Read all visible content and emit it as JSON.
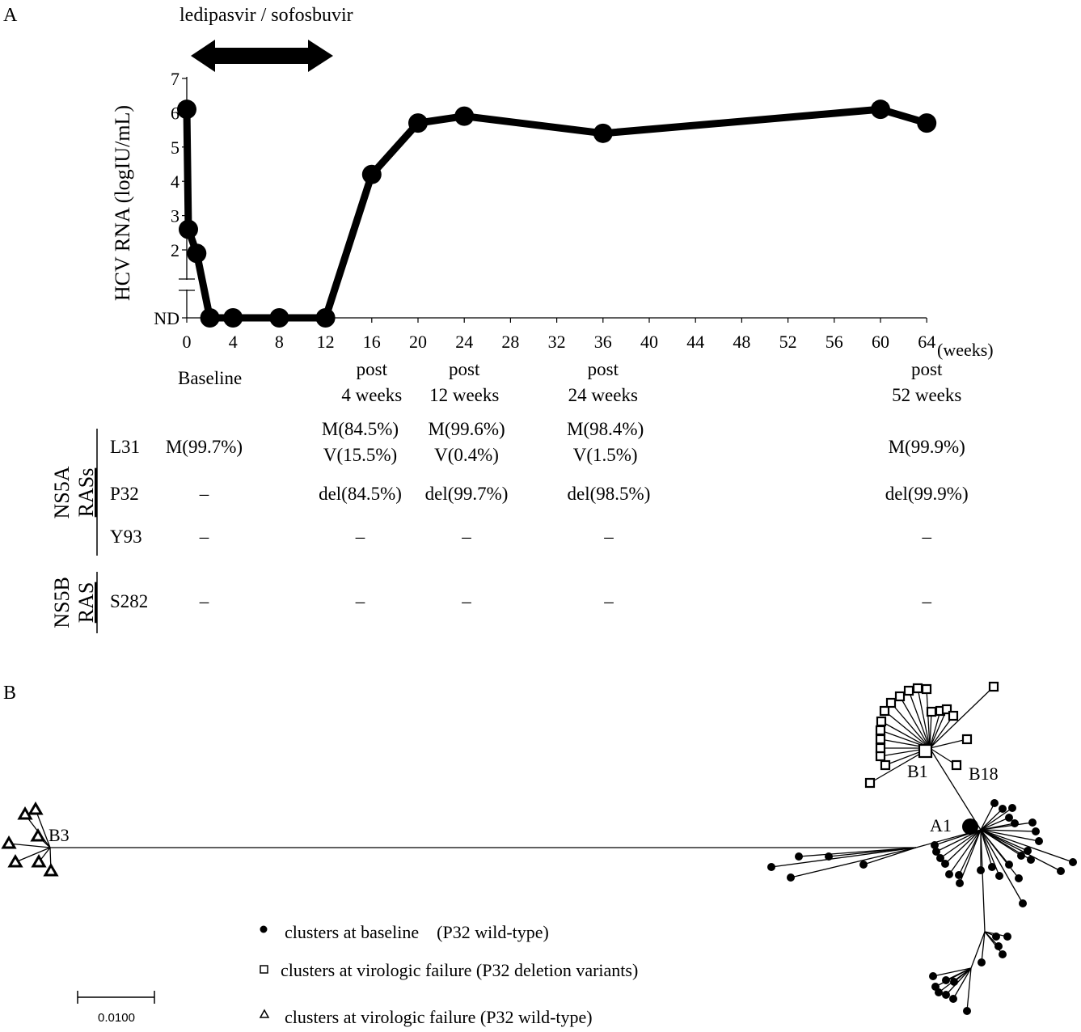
{
  "panel_a": {
    "label": "A",
    "treatment_label": "ledipasvir / sofosbuvir",
    "x_unit": "(weeks)",
    "time_labels": [
      {
        "week": 2,
        "lines": [
          "Baseline"
        ]
      },
      {
        "week": 16,
        "lines": [
          "post",
          "4 weeks"
        ]
      },
      {
        "week": 24,
        "lines": [
          "post",
          "12 weeks"
        ]
      },
      {
        "week": 36,
        "lines": [
          "post",
          "24 weeks"
        ]
      },
      {
        "week": 64,
        "lines": [
          "post",
          "52 weeks"
        ]
      }
    ]
  },
  "chart_data": {
    "type": "line",
    "title": "",
    "xlabel": "",
    "ylabel": "HCV RNA (logIU/mL)",
    "x_ticks": [
      "0",
      "4",
      "8",
      "12",
      "16",
      "20",
      "24",
      "28",
      "32",
      "36",
      "40",
      "44",
      "48",
      "52",
      "56",
      "60",
      "64"
    ],
    "y_ticks": [
      "ND",
      "2",
      "3",
      "4",
      "5",
      "6",
      "7"
    ],
    "xlim": [
      0,
      64
    ],
    "ylim": [
      0,
      7
    ],
    "y_axis_break": true,
    "grid": false,
    "treatment_period_weeks": [
      0,
      12
    ],
    "series": [
      {
        "points": [
          {
            "x": 0,
            "y": 6.1
          },
          {
            "x": 0.14,
            "y": 2.6
          },
          {
            "x": 0.86,
            "y": 1.9
          },
          {
            "x": 2,
            "y": "ND"
          },
          {
            "x": 4,
            "y": "ND"
          },
          {
            "x": 8,
            "y": "ND"
          },
          {
            "x": 12,
            "y": "ND"
          },
          {
            "x": 16,
            "y": 4.2
          },
          {
            "x": 20,
            "y": 5.7
          },
          {
            "x": 24,
            "y": 5.9
          },
          {
            "x": 36,
            "y": 5.4
          },
          {
            "x": 60,
            "y": 6.1
          },
          {
            "x": 64,
            "y": 5.7
          }
        ]
      }
    ]
  },
  "ras_table": {
    "groups": [
      {
        "label_lines": [
          "NS5A",
          "RASs"
        ],
        "rows": [
          {
            "position": "L31",
            "cells": [
              {
                "week": 1.5,
                "lines": [
                  "M(99.7%)"
                ]
              },
              {
                "week": 15,
                "lines": [
                  "M(84.5%)",
                  "V(15.5%)"
                ]
              },
              {
                "week": 24.2,
                "lines": [
                  "M(99.6%)",
                  "V(0.4%)"
                ]
              },
              {
                "week": 36.2,
                "lines": [
                  "M(98.4%)",
                  "V(1.5%)"
                ]
              },
              {
                "week": 64,
                "lines": [
                  "M(99.9%)"
                ]
              }
            ]
          },
          {
            "position": "P32",
            "cells": [
              {
                "week": 1.5,
                "lines": [
                  "–"
                ]
              },
              {
                "week": 15,
                "lines": [
                  "del(84.5%)"
                ]
              },
              {
                "week": 24.2,
                "lines": [
                  "del(99.7%)"
                ]
              },
              {
                "week": 36.5,
                "lines": [
                  "del(98.5%)"
                ]
              },
              {
                "week": 64,
                "lines": [
                  "del(99.9%)"
                ]
              }
            ]
          },
          {
            "position": "Y93",
            "cells": [
              {
                "week": 1.5,
                "lines": [
                  "–"
                ]
              },
              {
                "week": 15,
                "lines": [
                  "–"
                ]
              },
              {
                "week": 24.2,
                "lines": [
                  "–"
                ]
              },
              {
                "week": 36.5,
                "lines": [
                  "–"
                ]
              },
              {
                "week": 64,
                "lines": [
                  "–"
                ]
              }
            ]
          }
        ]
      },
      {
        "label_lines": [
          "NS5B",
          "RAS"
        ],
        "rows": [
          {
            "position": "S282",
            "cells": [
              {
                "week": 1.5,
                "lines": [
                  "–"
                ]
              },
              {
                "week": 15,
                "lines": [
                  "–"
                ]
              },
              {
                "week": 24.2,
                "lines": [
                  "–"
                ]
              },
              {
                "week": 36.5,
                "lines": [
                  "–"
                ]
              },
              {
                "week": 64,
                "lines": [
                  "–"
                ]
              }
            ]
          }
        ]
      }
    ]
  },
  "panel_b": {
    "label": "B",
    "node_labels": {
      "a1": "A1",
      "b1": "B1",
      "b18": "B18",
      "b3": "B3"
    },
    "scale_bar": "0.0100",
    "legend": [
      {
        "marker": "filled-circle",
        "text": "clusters at baseline　(P32 wild-type)"
      },
      {
        "marker": "open-square",
        "text": "clusters at virologic failure (P32 deletion variants)"
      },
      {
        "marker": "open-triangle",
        "text": "clusters at virologic failure (P32 wild-type)"
      }
    ]
  }
}
